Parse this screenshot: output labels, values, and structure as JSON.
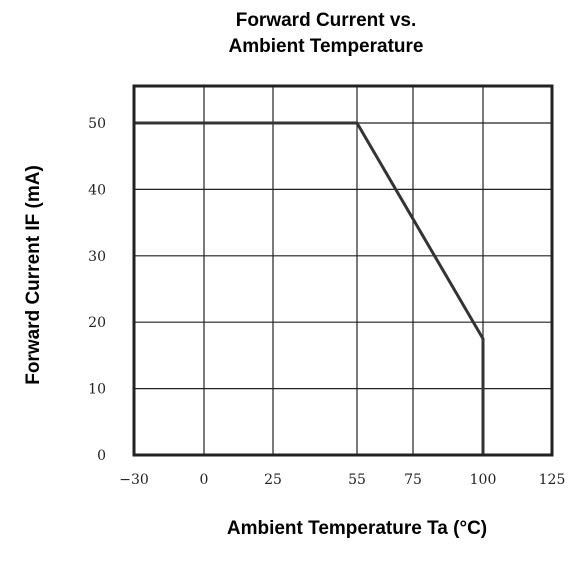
{
  "chart_data": {
    "type": "line",
    "title_lines": [
      "Forward Current vs.",
      "Ambient Temperature"
    ],
    "xlabel": "Ambient Temperature Ta (°C)",
    "ylabel": "Forward Current IF (mA)",
    "x_ticks": [
      -30,
      0,
      25,
      55,
      75,
      100,
      125
    ],
    "x_tick_labels": [
      "−30",
      "0",
      "25",
      "55",
      "75",
      "100",
      "125"
    ],
    "y_ticks": [
      0,
      10,
      20,
      30,
      40,
      50
    ],
    "y_tick_labels": [
      "0",
      "10",
      "20",
      "30",
      "40",
      "50"
    ],
    "xlim": [
      -30,
      125
    ],
    "ylim": [
      0,
      55
    ],
    "grid": true,
    "series": [
      {
        "x": [
          -30,
          55,
          100,
          100
        ],
        "y": [
          50,
          50,
          17.5,
          0
        ]
      }
    ],
    "colors": {
      "line": "#333333",
      "grid": "#222222",
      "axis": "#222222"
    }
  }
}
